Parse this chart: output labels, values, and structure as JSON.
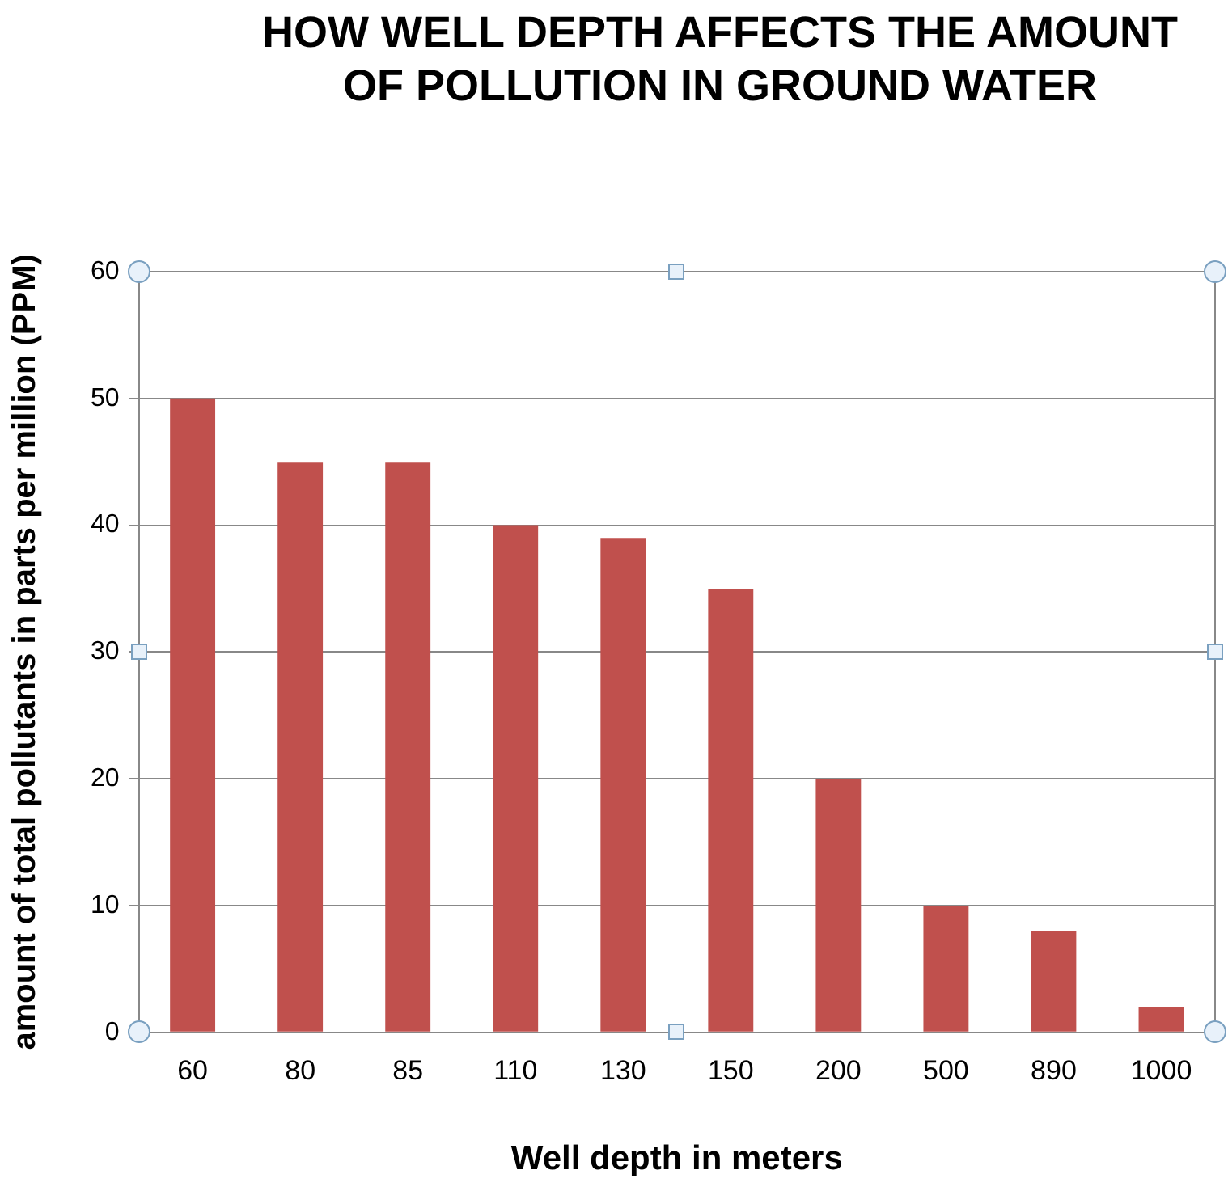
{
  "chart_data": {
    "type": "bar",
    "title": "HOW WELL DEPTH AFFECTS THE AMOUNT OF POLLUTION IN GROUND WATER",
    "xlabel": "Well depth in meters",
    "ylabel": "amount of total pollutants in parts per million (PPM)",
    "categories": [
      "60",
      "80",
      "85",
      "110",
      "130",
      "150",
      "200",
      "500",
      "890",
      "1000"
    ],
    "values": [
      50,
      45,
      45,
      40,
      39,
      35,
      20,
      10,
      8,
      2
    ],
    "color": "#c0504d",
    "ylim": [
      0,
      60
    ],
    "yticks": [
      0,
      10,
      20,
      30,
      40,
      50,
      60
    ],
    "grid": "y",
    "legend": false
  }
}
